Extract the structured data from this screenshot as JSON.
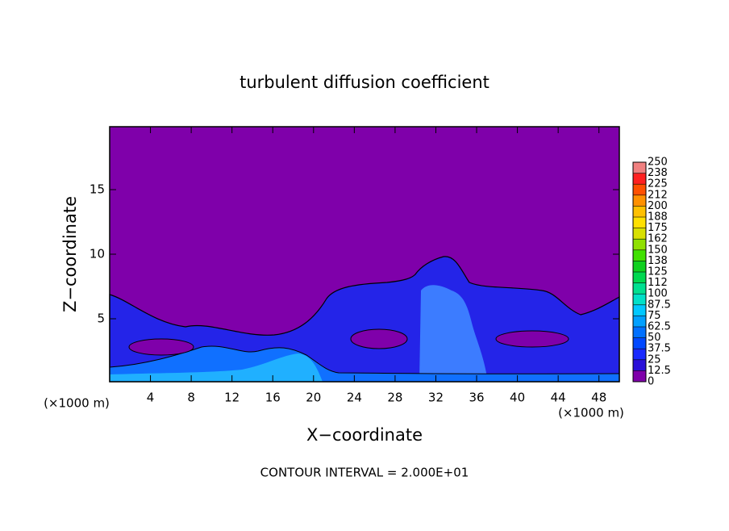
{
  "chart_data": {
    "type": "contour",
    "title": "turbulent diffusion coefficient",
    "xlabel": "X−coordinate",
    "ylabel": "Z−coordinate",
    "x_units": [
      "(×1000 m)",
      "(×1000 m)"
    ],
    "footer": "CONTOUR INTERVAL = 2.000E+01",
    "xlim": [
      0,
      50
    ],
    "xticks": [
      4,
      8,
      12,
      16,
      20,
      24,
      28,
      32,
      36,
      40,
      44,
      48
    ],
    "ylim": [
      0.125,
      19.875
    ],
    "yticks": [
      5,
      10,
      15
    ],
    "colorbar": {
      "ticks": [
        0,
        12.5,
        25,
        37.5,
        50,
        62.5,
        75,
        87.5,
        100,
        {
          "value": 112.5,
          "label": "112"
        },
        125,
        {
          "value": 137.5,
          "label": "138"
        },
        150,
        {
          "value": 162.5,
          "label": "162"
        },
        175,
        {
          "value": 187.5,
          "label": "188"
        },
        200,
        {
          "value": 212.5,
          "label": "212"
        },
        225,
        {
          "value": 237.5,
          "label": "238"
        },
        250
      ],
      "colors": [
        "#7f00aa",
        "#2a10d8",
        "#1a2aff",
        "#0048ff",
        "#0070ff",
        "#00a0ff",
        "#00c8ff",
        "#00e0c8",
        "#00e090",
        "#00d850",
        "#10d020",
        "#40e000",
        "#90e000",
        "#d8e000",
        "#ffe000",
        "#ffc000",
        "#ff9000",
        "#ff5000",
        "#ff2020",
        "#f08080"
      ]
    }
  }
}
